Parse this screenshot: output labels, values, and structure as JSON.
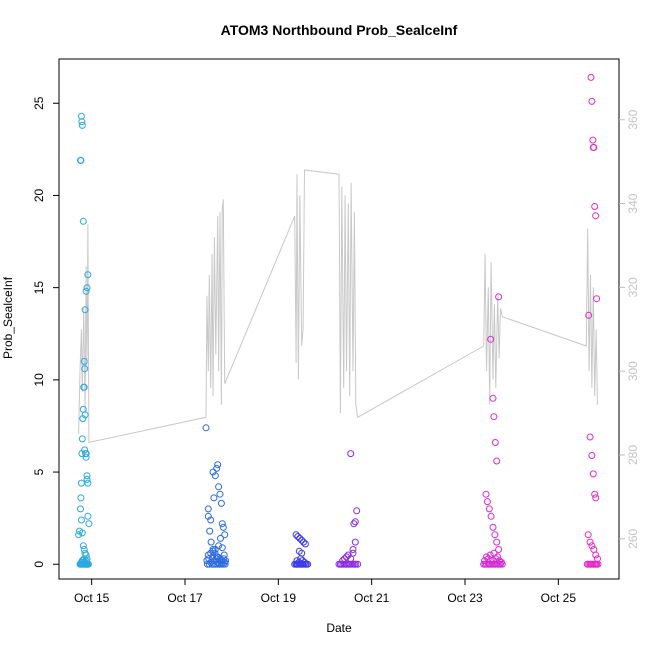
{
  "chart_data": {
    "type": "scatter",
    "title": "ATOM3 Northbound Prob_SealceInf",
    "xlabel": "Date",
    "ylabel": "Prob_SealceInf",
    "x_ticks": [
      "Oct 15",
      "Oct 17",
      "Oct 19",
      "Oct 21",
      "Oct 23",
      "Oct 25"
    ],
    "x_tick_values": [
      15,
      17,
      19,
      21,
      23,
      25
    ],
    "xlim": [
      14.3,
      26.3
    ],
    "ylim": [
      -0.8,
      27.4
    ],
    "y_ticks": [
      0,
      5,
      10,
      15,
      20,
      25
    ],
    "y2_ticks": [
      260,
      280,
      300,
      320,
      340,
      360
    ],
    "y2lim": [
      250.4,
      374.5
    ],
    "grid": false,
    "series": [
      {
        "kind": "points",
        "color": "#29A8E0",
        "x": [
          14.72,
          14.74,
          14.76,
          14.77,
          14.78,
          14.79,
          14.8,
          14.81,
          14.82,
          14.83,
          14.84,
          14.85,
          14.86,
          14.88,
          14.9,
          14.92,
          14.76,
          14.77,
          14.78,
          14.79,
          14.8,
          14.82,
          14.84,
          14.86,
          14.88,
          14.9,
          14.92,
          14.94,
          14.78,
          14.8,
          14.82,
          14.84,
          14.86,
          14.88,
          14.9,
          14.85,
          14.87,
          14.88,
          14.9,
          14.92,
          14.75,
          14.77,
          14.79,
          14.81,
          14.83,
          14.85,
          14.87,
          14.89,
          14.91,
          14.93,
          14.78,
          14.8,
          14.82,
          14.84,
          14.86,
          14.88,
          14.9
        ],
        "y": [
          1.6,
          1.8,
          3.0,
          3.6,
          4.4,
          6.0,
          6.8,
          7.9,
          8.4,
          9.6,
          11.0,
          10.6,
          13.8,
          14.8,
          15.0,
          15.7,
          21.9,
          21.9,
          24.3,
          24.0,
          23.8,
          18.6,
          9.6,
          8.1,
          6.0,
          4.8,
          2.6,
          2.2,
          2.4,
          1.7,
          1.0,
          0.8,
          0.6,
          0.5,
          0.3,
          6.2,
          6.0,
          5.8,
          4.6,
          4.4,
          0,
          0,
          0,
          0,
          0,
          0,
          0,
          0,
          0,
          0,
          0.1,
          0.2,
          0.2,
          0.3,
          0.1,
          0.2,
          0
        ]
      },
      {
        "kind": "points",
        "color": "#2D6BE0",
        "x": [
          17.45,
          17.5,
          17.55,
          17.6,
          17.62,
          17.65,
          17.68,
          17.7,
          17.72,
          17.75,
          17.78,
          17.8,
          17.82,
          17.85,
          17.5,
          17.53,
          17.56,
          17.6,
          17.64,
          17.68,
          17.72,
          17.76,
          17.8,
          17.84,
          17.48,
          17.52,
          17.58,
          17.62,
          17.66,
          17.7,
          17.74,
          17.78,
          17.82,
          17.86,
          17.47,
          17.51,
          17.55,
          17.59,
          17.63,
          17.67,
          17.71,
          17.75,
          17.79,
          17.83,
          17.87,
          17.5,
          17.55,
          17.6,
          17.65,
          17.7,
          17.75,
          17.8,
          17.85
        ],
        "y": [
          7.4,
          3.0,
          2.4,
          5.0,
          3.6,
          4.8,
          5.2,
          5.4,
          4.2,
          3.8,
          3.3,
          2.2,
          2.0,
          1.6,
          2.6,
          1.8,
          1.2,
          0.8,
          0.6,
          0.4,
          1.0,
          1.4,
          0.9,
          0.5,
          0,
          0,
          0,
          0,
          0,
          0,
          0,
          0,
          0,
          0,
          0.2,
          0.3,
          0.1,
          0.4,
          0.2,
          0.3,
          0.1,
          0.2,
          0.1,
          0.3,
          0.2,
          0.5,
          0.6,
          0.7,
          0.8,
          0.4,
          0.3,
          0.2,
          0.1
        ]
      },
      {
        "kind": "points",
        "color": "#3B3BE8",
        "x": [
          19.35,
          19.38,
          19.4,
          19.42,
          19.45,
          19.48,
          19.5,
          19.52,
          19.55,
          19.58,
          19.6,
          19.63,
          19.38,
          19.42,
          19.46,
          19.5,
          19.54,
          19.58,
          19.4,
          19.44,
          19.48,
          19.52,
          19.56,
          19.45,
          19.5
        ],
        "y": [
          0,
          0,
          0,
          0,
          0,
          0,
          0,
          0,
          0,
          0,
          0,
          0,
          1.6,
          1.5,
          1.4,
          1.3,
          1.2,
          1.1,
          0.2,
          0.1,
          0.3,
          0.2,
          0.1,
          0.7,
          0.6
        ]
      },
      {
        "kind": "points",
        "color": "#8A2BE2",
        "x": [
          20.3,
          20.33,
          20.36,
          20.4,
          20.43,
          20.46,
          20.5,
          20.53,
          20.56,
          20.6,
          20.63,
          20.66,
          20.7,
          20.38,
          20.42,
          20.46,
          20.5,
          20.55,
          20.6,
          20.65,
          20.55,
          20.6,
          20.62,
          20.65,
          20.68
        ],
        "y": [
          0,
          0,
          0,
          0,
          0,
          0,
          0,
          0,
          0,
          0,
          0,
          0,
          0,
          0.2,
          0.3,
          0.4,
          0.5,
          0.3,
          0.8,
          1.2,
          6.0,
          0.6,
          2.2,
          2.3,
          2.9
        ]
      },
      {
        "kind": "points",
        "color": "#D62BD6",
        "x": [
          23.4,
          23.43,
          23.46,
          23.5,
          23.53,
          23.56,
          23.6,
          23.63,
          23.66,
          23.7,
          23.73,
          23.76,
          23.8,
          23.55,
          23.6,
          23.62,
          23.65,
          23.68,
          23.72,
          23.45,
          23.48,
          23.52,
          23.56,
          23.6,
          23.64,
          23.68,
          23.72,
          23.42,
          23.46,
          23.5,
          23.54,
          23.58,
          23.62,
          23.66,
          23.7,
          23.74,
          23.78
        ],
        "y": [
          0,
          0,
          0,
          0,
          0,
          0,
          0,
          0,
          0,
          0,
          0,
          0,
          0,
          12.2,
          9.0,
          8.0,
          6.6,
          5.6,
          14.5,
          3.8,
          3.4,
          3.0,
          2.6,
          2.0,
          1.6,
          1.2,
          0.8,
          0.2,
          0.4,
          0.3,
          0.5,
          0.2,
          0.6,
          0.3,
          0.4,
          0.2,
          0.1
        ]
      },
      {
        "kind": "points",
        "color": "#E828C8",
        "x": [
          25.62,
          25.65,
          25.68,
          25.7,
          25.72,
          25.75,
          25.78,
          25.8,
          25.82,
          25.85,
          25.7,
          25.72,
          25.74,
          25.75,
          25.76,
          25.78,
          25.8,
          25.82,
          25.65,
          25.68,
          25.72,
          25.75,
          25.78,
          25.8,
          25.64,
          25.68,
          25.72,
          25.76,
          25.8,
          25.84
        ],
        "y": [
          0,
          0,
          0,
          0,
          0,
          0,
          0,
          0,
          0,
          0,
          26.4,
          25.1,
          23.0,
          22.6,
          22.6,
          19.4,
          18.9,
          14.4,
          13.5,
          6.9,
          5.9,
          4.9,
          3.8,
          3.6,
          1.6,
          1.2,
          1.0,
          0.8,
          0.5,
          0.3
        ]
      },
      {
        "kind": "line",
        "axis": "right",
        "color": "#C8C8C8",
        "x": [
          14.72,
          14.75,
          14.78,
          14.8,
          14.83,
          14.86,
          14.88,
          14.9,
          14.92,
          14.94,
          17.45,
          17.47,
          17.5,
          17.52,
          17.55,
          17.58,
          17.6,
          17.63,
          17.66,
          17.7,
          17.72,
          17.75,
          17.78,
          17.8,
          17.82,
          17.85,
          19.35,
          19.38,
          19.4,
          19.43,
          19.46,
          19.5,
          19.53,
          19.56,
          20.3,
          20.33,
          20.36,
          20.4,
          20.43,
          20.46,
          20.5,
          20.53,
          20.56,
          20.6,
          20.63,
          20.66,
          20.7,
          23.4,
          23.43,
          23.46,
          23.5,
          23.53,
          23.56,
          23.6,
          23.63,
          23.66,
          23.7,
          23.73,
          23.76,
          23.8,
          25.6,
          25.63,
          25.66,
          25.69,
          25.72,
          25.75,
          25.78,
          25.81,
          25.84
        ],
        "y": [
          285,
          300,
          310,
          295,
          315,
          290,
          325,
          300,
          335,
          283,
          289,
          318,
          300,
          323,
          296,
          328,
          294,
          332,
          304,
          337,
          300,
          338,
          292,
          339,
          341,
          297,
          337,
          302,
          347,
          298,
          342,
          306,
          310,
          348,
          347,
          290,
          344,
          296,
          342,
          300,
          340,
          294,
          345,
          300,
          338,
          292,
          289,
          306,
          328,
          300,
          320,
          292,
          326,
          298,
          316,
          296,
          318,
          303,
          315,
          313,
          306,
          334,
          300,
          323,
          296,
          320,
          294,
          310,
          292
        ]
      }
    ]
  }
}
